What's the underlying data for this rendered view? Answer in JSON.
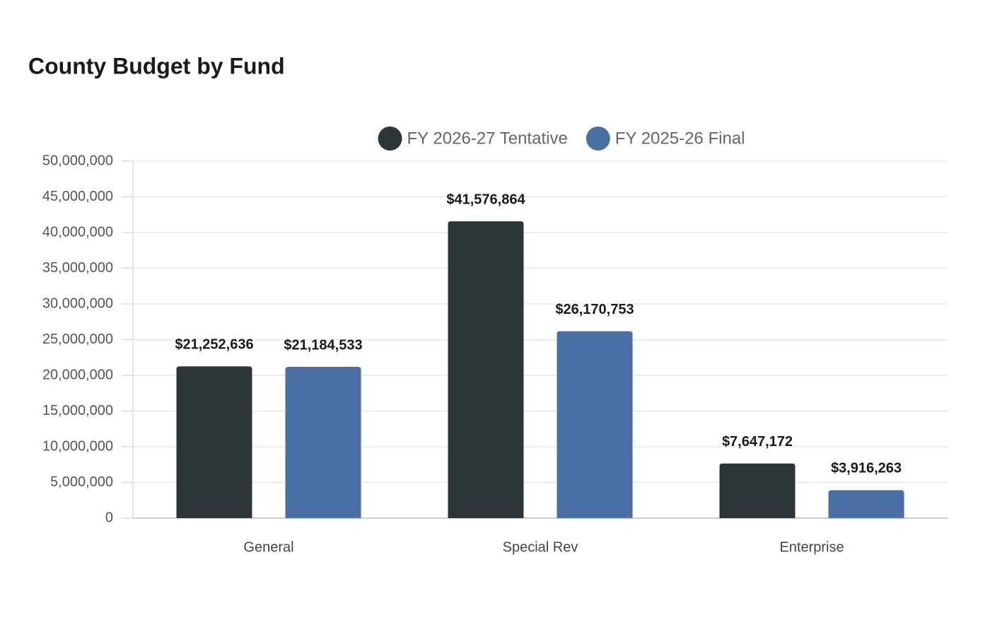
{
  "chart_data": {
    "type": "bar",
    "title": "County Budget by Fund",
    "categories": [
      "General",
      "Special Rev",
      "Enterprise"
    ],
    "series": [
      {
        "name": "FY 2026-27 Tentative",
        "color": "#2e3538",
        "values": [
          21252636,
          41576864,
          7647172
        ],
        "value_labels": [
          "$21,252,636",
          "$41,576,864",
          "$7,647,172"
        ]
      },
      {
        "name": "FY 2025-26 Final",
        "color": "#4a6fa5",
        "values": [
          21184533,
          26170753,
          3916263
        ],
        "value_labels": [
          "$21,184,533",
          "$26,170,753",
          "$3,916,263"
        ]
      }
    ],
    "ylim": [
      0,
      50000000
    ],
    "yticks": [
      0,
      {
        "value": 5000000,
        "label": "5,000,000"
      },
      {
        "value": 10000000,
        "label": "10,000,000"
      },
      {
        "value": 15000000,
        "label": "15,000,000"
      },
      {
        "value": 20000000,
        "label": "20,000,000"
      },
      {
        "value": 25000000,
        "label": "25,000,000"
      },
      {
        "value": 30000000,
        "label": "30,000,000"
      },
      {
        "value": 35000000,
        "label": "35,000,000"
      },
      {
        "value": 40000000,
        "label": "40,000,000"
      },
      {
        "value": 45000000,
        "label": "45,000,000"
      },
      {
        "value": 50000000,
        "label": "50,000,000"
      }
    ],
    "grid": true,
    "legend": "top"
  }
}
